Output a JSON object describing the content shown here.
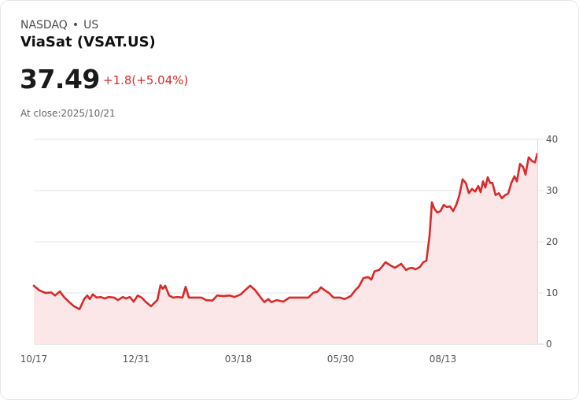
{
  "header": {
    "exchange": "NASDAQ",
    "separator": "•",
    "region": "US",
    "title": "ViaSat (VSAT.US)",
    "price": "37.49",
    "change": "+1.8(+5.04%)",
    "close_label": "At close:2025/10/21"
  },
  "colors": {
    "line": "#d62b2b",
    "fill": "#fbe7e7",
    "change": "#d62b2b",
    "grid": "#e3e3e3"
  },
  "chart_data": {
    "type": "area",
    "title": "ViaSat (VSAT.US)",
    "xlabel": "",
    "ylabel": "",
    "ylim": [
      0,
      40
    ],
    "y_ticks": [
      0,
      10,
      20,
      30,
      40
    ],
    "x_tick_labels": [
      "10/17",
      "12/31",
      "03/18",
      "05/30",
      "08/13"
    ],
    "grid": true,
    "y_axis_position": "right",
    "series": [
      {
        "name": "VSAT.US close",
        "points": [
          [
            43,
            11.4
          ],
          [
            50,
            10.5
          ],
          [
            58,
            10.0
          ],
          [
            65,
            10.1
          ],
          [
            70,
            9.5
          ],
          [
            76,
            10.3
          ],
          [
            82,
            9.1
          ],
          [
            88,
            8.2
          ],
          [
            94,
            7.4
          ],
          [
            101,
            6.8
          ],
          [
            107,
            8.8
          ],
          [
            111,
            9.5
          ],
          [
            114,
            8.8
          ],
          [
            118,
            9.7
          ],
          [
            123,
            9.1
          ],
          [
            128,
            9.2
          ],
          [
            133,
            8.9
          ],
          [
            138,
            9.2
          ],
          [
            145,
            9.1
          ],
          [
            150,
            8.6
          ],
          [
            156,
            9.2
          ],
          [
            160,
            8.9
          ],
          [
            165,
            9.2
          ],
          [
            170,
            8.3
          ],
          [
            175,
            9.5
          ],
          [
            180,
            9.1
          ],
          [
            185,
            8.3
          ],
          [
            192,
            7.4
          ],
          [
            200,
            8.6
          ],
          [
            204,
            11.5
          ],
          [
            207,
            10.8
          ],
          [
            210,
            11.4
          ],
          [
            215,
            9.5
          ],
          [
            220,
            9.1
          ],
          [
            226,
            9.2
          ],
          [
            232,
            9.1
          ],
          [
            236,
            11.2
          ],
          [
            240,
            9.1
          ],
          [
            248,
            9.1
          ],
          [
            256,
            9.1
          ],
          [
            262,
            8.6
          ],
          [
            270,
            8.5
          ],
          [
            276,
            9.5
          ],
          [
            284,
            9.4
          ],
          [
            292,
            9.5
          ],
          [
            298,
            9.2
          ],
          [
            306,
            9.7
          ],
          [
            312,
            10.6
          ],
          [
            318,
            11.4
          ],
          [
            324,
            10.6
          ],
          [
            330,
            9.4
          ],
          [
            336,
            8.2
          ],
          [
            341,
            8.8
          ],
          [
            345,
            8.2
          ],
          [
            352,
            8.6
          ],
          [
            360,
            8.3
          ],
          [
            368,
            9.1
          ],
          [
            376,
            9.1
          ],
          [
            384,
            9.1
          ],
          [
            392,
            9.1
          ],
          [
            398,
            10.0
          ],
          [
            404,
            10.3
          ],
          [
            408,
            11.1
          ],
          [
            412,
            10.6
          ],
          [
            418,
            10.0
          ],
          [
            424,
            9.1
          ],
          [
            432,
            9.1
          ],
          [
            438,
            8.8
          ],
          [
            446,
            9.4
          ],
          [
            452,
            10.6
          ],
          [
            456,
            11.2
          ],
          [
            462,
            12.9
          ],
          [
            468,
            13.1
          ],
          [
            472,
            12.6
          ],
          [
            476,
            14.2
          ],
          [
            482,
            14.5
          ],
          [
            486,
            15.2
          ],
          [
            490,
            16.0
          ],
          [
            496,
            15.4
          ],
          [
            502,
            14.9
          ],
          [
            510,
            15.7
          ],
          [
            516,
            14.5
          ],
          [
            520,
            14.8
          ],
          [
            524,
            14.9
          ],
          [
            528,
            14.6
          ],
          [
            534,
            15.1
          ],
          [
            538,
            16.0
          ],
          [
            542,
            16.3
          ],
          [
            546,
            21.1
          ],
          [
            549,
            27.7
          ],
          [
            552,
            26.5
          ],
          [
            556,
            25.7
          ],
          [
            560,
            26.0
          ],
          [
            564,
            27.2
          ],
          [
            568,
            26.8
          ],
          [
            572,
            26.9
          ],
          [
            576,
            26.0
          ],
          [
            580,
            27.2
          ],
          [
            584,
            29.1
          ],
          [
            588,
            32.2
          ],
          [
            592,
            31.5
          ],
          [
            596,
            29.5
          ],
          [
            600,
            30.3
          ],
          [
            604,
            29.8
          ],
          [
            608,
            30.9
          ],
          [
            611,
            29.7
          ],
          [
            614,
            31.8
          ],
          [
            617,
            30.6
          ],
          [
            620,
            32.6
          ],
          [
            623,
            31.5
          ],
          [
            626,
            31.5
          ],
          [
            630,
            29.1
          ],
          [
            634,
            29.5
          ],
          [
            638,
            28.5
          ],
          [
            642,
            29.1
          ],
          [
            646,
            29.4
          ],
          [
            650,
            31.5
          ],
          [
            654,
            32.8
          ],
          [
            657,
            31.8
          ],
          [
            661,
            35.2
          ],
          [
            665,
            34.6
          ],
          [
            668,
            33.1
          ],
          [
            672,
            36.5
          ],
          [
            676,
            35.8
          ],
          [
            680,
            35.5
          ],
          [
            683,
            37.2
          ]
        ]
      }
    ],
    "last_value": 37.49,
    "date_range": [
      "10/17",
      "10/21"
    ]
  }
}
